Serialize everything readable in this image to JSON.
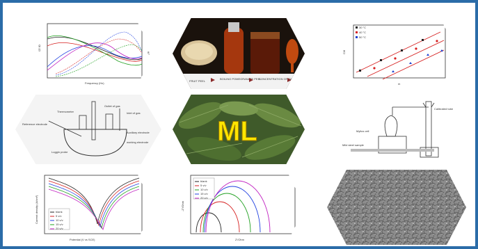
{
  "bode_panel": {
    "ylabel_left": "/Z/ /Ω",
    "ylabel_right": "θ/°",
    "xlabel": "Frequency (Hz)"
  },
  "process_panel": {
    "steps": [
      "FRUIT PEEL",
      "BOILING POMEGRANATE PEEL",
      "CONCENTRATION OF EXTRACT"
    ]
  },
  "langmuir_panel": {
    "ylabel": "C/θ",
    "xlabel": "m",
    "legend": [
      "30 °C",
      "40 °C",
      "50 °C"
    ],
    "legend_colors": [
      "#222222",
      "#d62020",
      "#1a3fd1"
    ]
  },
  "cell_panel": {
    "labels": {
      "thermometer": "Thermometer",
      "gas_outlet": "Outlet of gas",
      "gas_inlet": "Inlet of gas",
      "reference": "Reference electrode",
      "auxiliary": "Auxiliary electrode",
      "working": "working electrode",
      "luggin": "Luggin probe"
    }
  },
  "center_panel": {
    "logo": "ML"
  },
  "gasometric_panel": {
    "labels": {
      "tube": "Calibrated tube",
      "cell": "Mylius cell",
      "sample": "Mild steel sample"
    }
  },
  "tafel_panel": {
    "ylabel": "Current density (A/cm²)",
    "xlabel": "Potential (V vs SCE)",
    "legend": [
      "blank",
      "5 v/v",
      "10 v/v",
      "15 v/v",
      "20 v/v"
    ],
    "colors": [
      "#222222",
      "#d62020",
      "#2040e0",
      "#20a020",
      "#c020c0"
    ]
  },
  "nyquist_panel": {
    "ylabel": "-Z''/Ohm",
    "xlabel": "Z'/Ohm",
    "legend": [
      "blank",
      "5 v/v",
      "10 v/v",
      "15 v/v",
      "20 v/v"
    ],
    "colors": [
      "#222222",
      "#d62020",
      "#20a020",
      "#2040e0",
      "#c020c0"
    ]
  },
  "sem_panel": {}
}
